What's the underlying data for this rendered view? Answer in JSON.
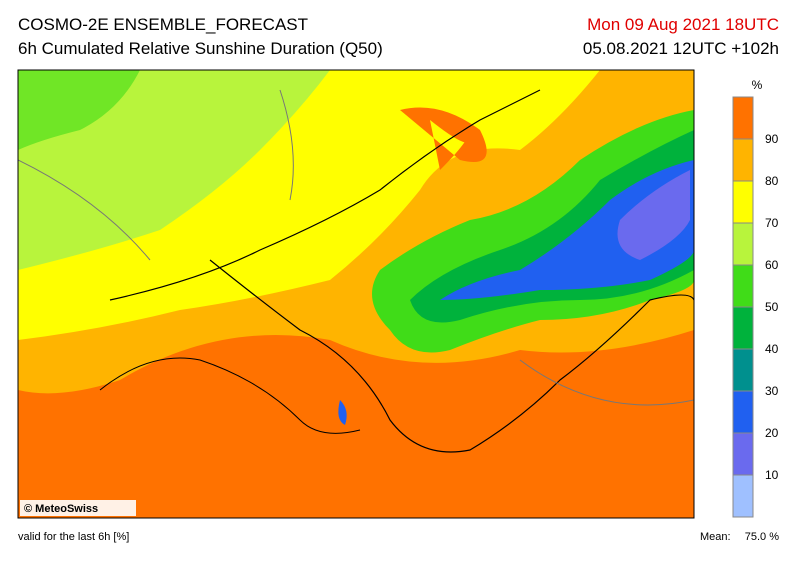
{
  "header": {
    "title": "COSMO-2E ENSEMBLE_FORECAST",
    "subtitle": "6h Cumulated Relative Sunshine Duration (Q50)",
    "valid_time": "Mon 09 Aug 2021 18UTC",
    "run": "05.08.2021 12UTC +102h"
  },
  "colorbar": {
    "unit": "%",
    "ticks": [
      10,
      20,
      30,
      40,
      50,
      60,
      70,
      80,
      90
    ],
    "colors": [
      "#9fc0ff",
      "#6a6aee",
      "#2060f0",
      "#00908e",
      "#00b23c",
      "#40dc18",
      "#b8f43c",
      "#ffff00",
      "#ffb400",
      "#ff7200"
    ]
  },
  "copyright": "© MeteoSwiss",
  "footer": {
    "note": "valid for the last 6h [%]",
    "mean_label": "Mean:",
    "mean_value": "75.0 %"
  }
}
